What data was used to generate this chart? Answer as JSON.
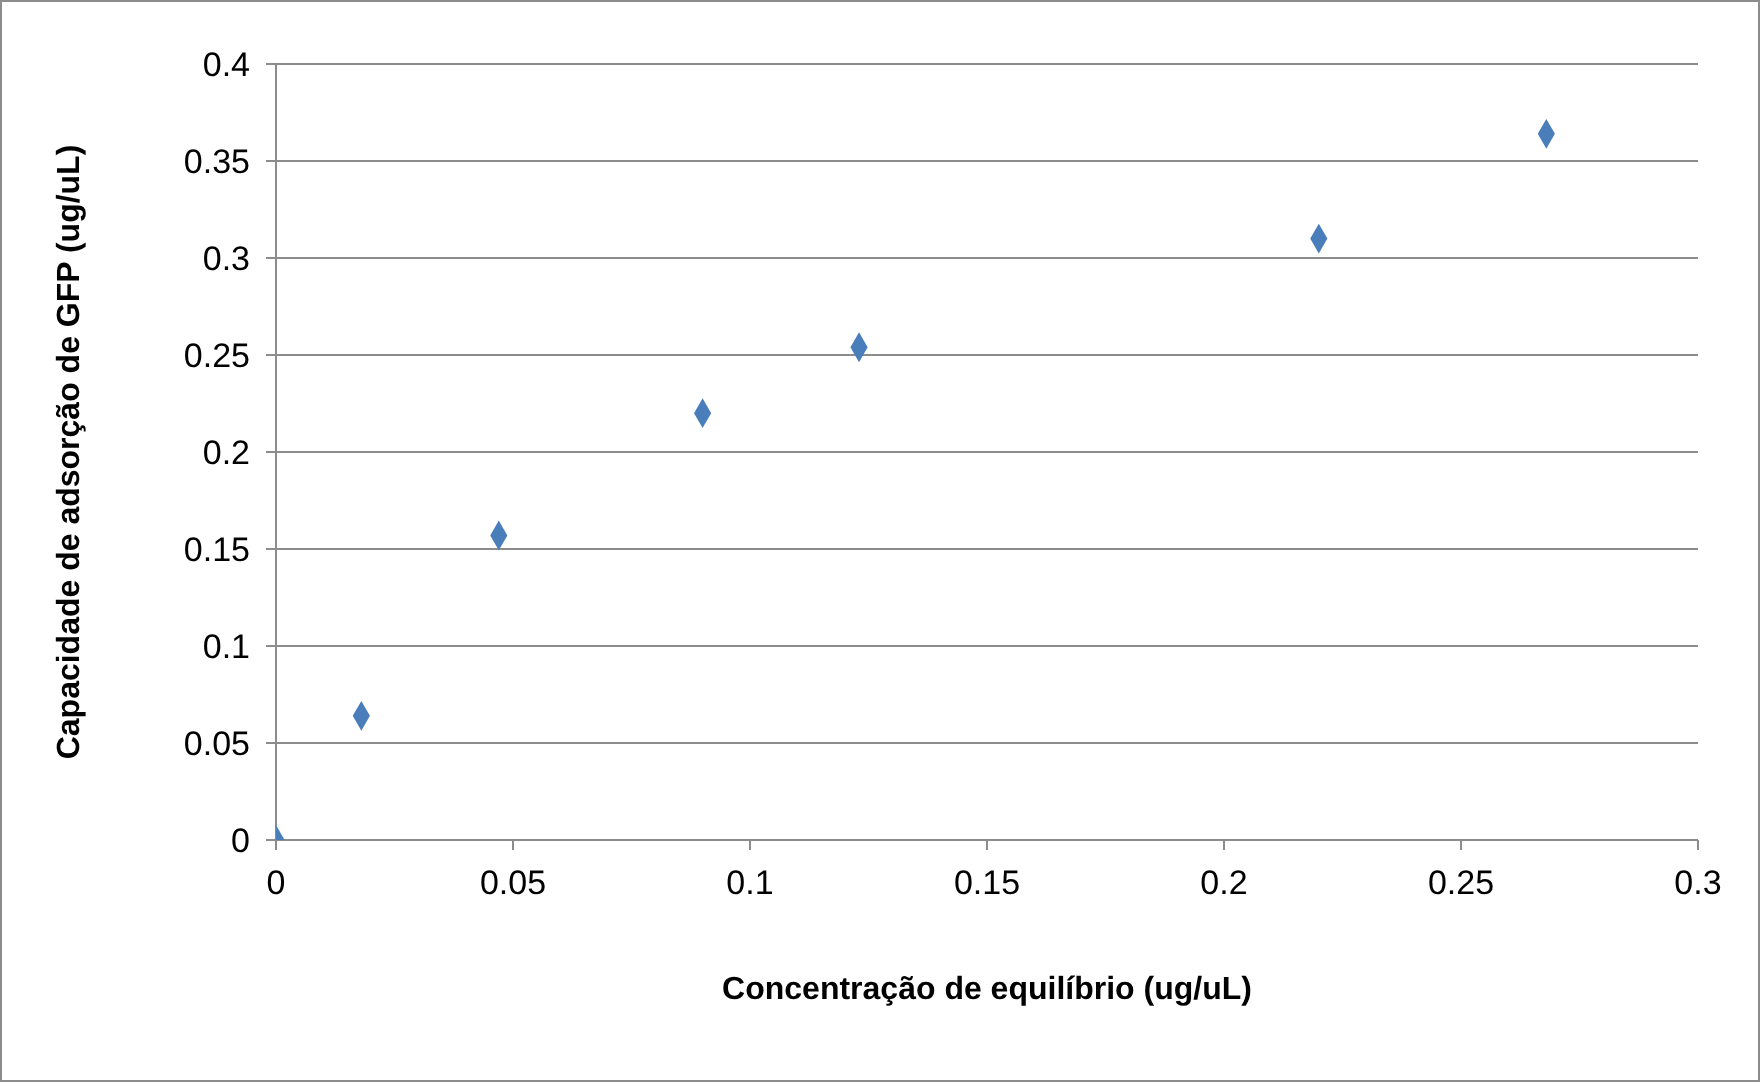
{
  "chart_data": {
    "type": "scatter",
    "xlabel": "Concentração de equilíbrio (ug/uL)",
    "ylabel": "Capacidade de adsorção de GFP (ug/uL)",
    "x": [
      0,
      0.018,
      0.047,
      0.09,
      0.123,
      0.22,
      0.268
    ],
    "series": [
      {
        "color": "#4a7ebb",
        "values": [
          0,
          0.064,
          0.157,
          0.22,
          0.254,
          0.31,
          0.364
        ]
      }
    ],
    "xlim": [
      0,
      0.3
    ],
    "xticks": [
      0,
      0.05,
      0.1,
      0.15,
      0.2,
      0.25,
      0.3
    ],
    "ylim": [
      0,
      0.4
    ],
    "yticks": [
      0,
      0.05,
      0.1,
      0.15,
      0.2,
      0.25,
      0.3,
      0.35,
      0.4
    ],
    "grid": "y",
    "legend": false,
    "marker": "diamond"
  }
}
